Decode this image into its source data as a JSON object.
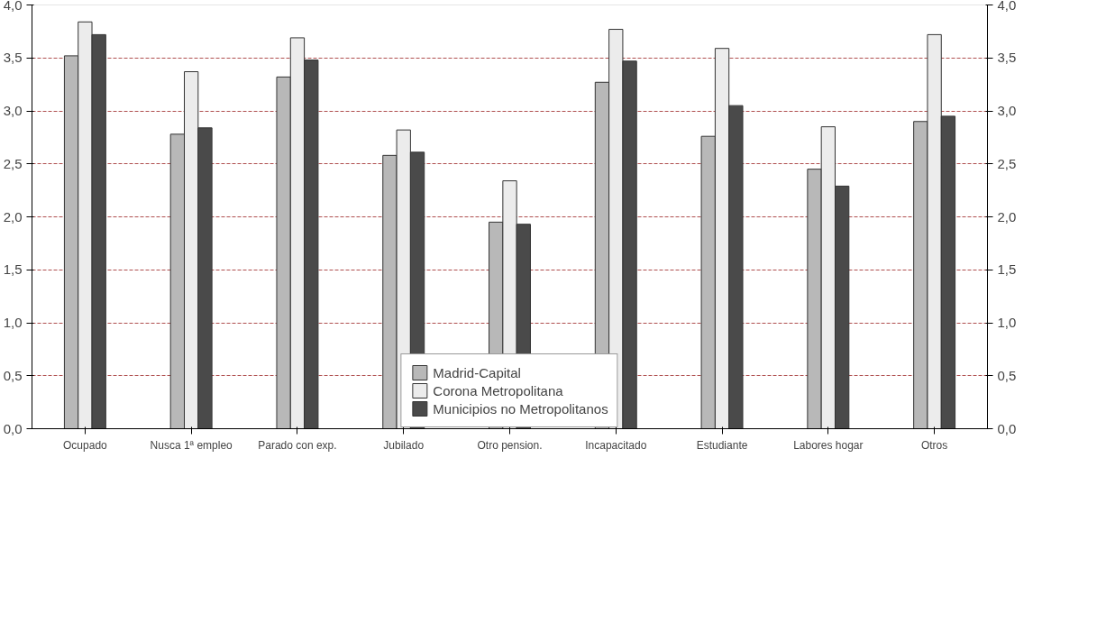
{
  "chart_data": {
    "type": "bar",
    "categories": [
      "Ocupado",
      "Nusca 1ª empleo",
      "Parado con exp.",
      "Jubilado",
      "Otro pension.",
      "Incapacitado",
      "Estudiante",
      "Labores hogar",
      "Otros"
    ],
    "series": [
      {
        "name": "Madrid-Capital",
        "color": "#b8b8b8",
        "values": [
          3.52,
          2.78,
          3.32,
          2.58,
          1.95,
          3.27,
          2.76,
          2.45,
          2.9
        ]
      },
      {
        "name": "Corona Metropolitana",
        "color": "#ececec",
        "values": [
          3.84,
          3.37,
          3.69,
          2.82,
          2.34,
          3.77,
          3.59,
          2.85,
          3.72
        ]
      },
      {
        "name": "Municipios no Metropolitanos",
        "color": "#4a4a4a",
        "values": [
          3.72,
          2.84,
          3.48,
          2.61,
          1.93,
          3.47,
          3.05,
          2.29,
          2.95
        ]
      }
    ],
    "ylim": [
      0,
      4
    ],
    "yticks": [
      {
        "value": 0,
        "label": "0,0"
      },
      {
        "value": 0.5,
        "label": "0,5"
      },
      {
        "value": 1,
        "label": "1,0"
      },
      {
        "value": 1.5,
        "label": "1,5"
      },
      {
        "value": 2,
        "label": "2,0"
      },
      {
        "value": 2.5,
        "label": "2,5"
      },
      {
        "value": 3,
        "label": "3,0"
      },
      {
        "value": 3.5,
        "label": "3,5"
      },
      {
        "value": 4,
        "label": "4,0"
      }
    ],
    "y2lim": [
      0,
      4
    ],
    "y2ticks": [
      {
        "value": 0,
        "label": "0,0"
      },
      {
        "value": 0.5,
        "label": "0,5"
      },
      {
        "value": 1,
        "label": "1,0"
      },
      {
        "value": 1.5,
        "label": "1,5"
      },
      {
        "value": 2,
        "label": "2,0"
      },
      {
        "value": 2.5,
        "label": "2,5"
      },
      {
        "value": 3,
        "label": "3,0"
      },
      {
        "value": 3.5,
        "label": "3,5"
      },
      {
        "value": 4,
        "label": "4,0"
      }
    ],
    "grid": "y",
    "legend": "bottom"
  }
}
